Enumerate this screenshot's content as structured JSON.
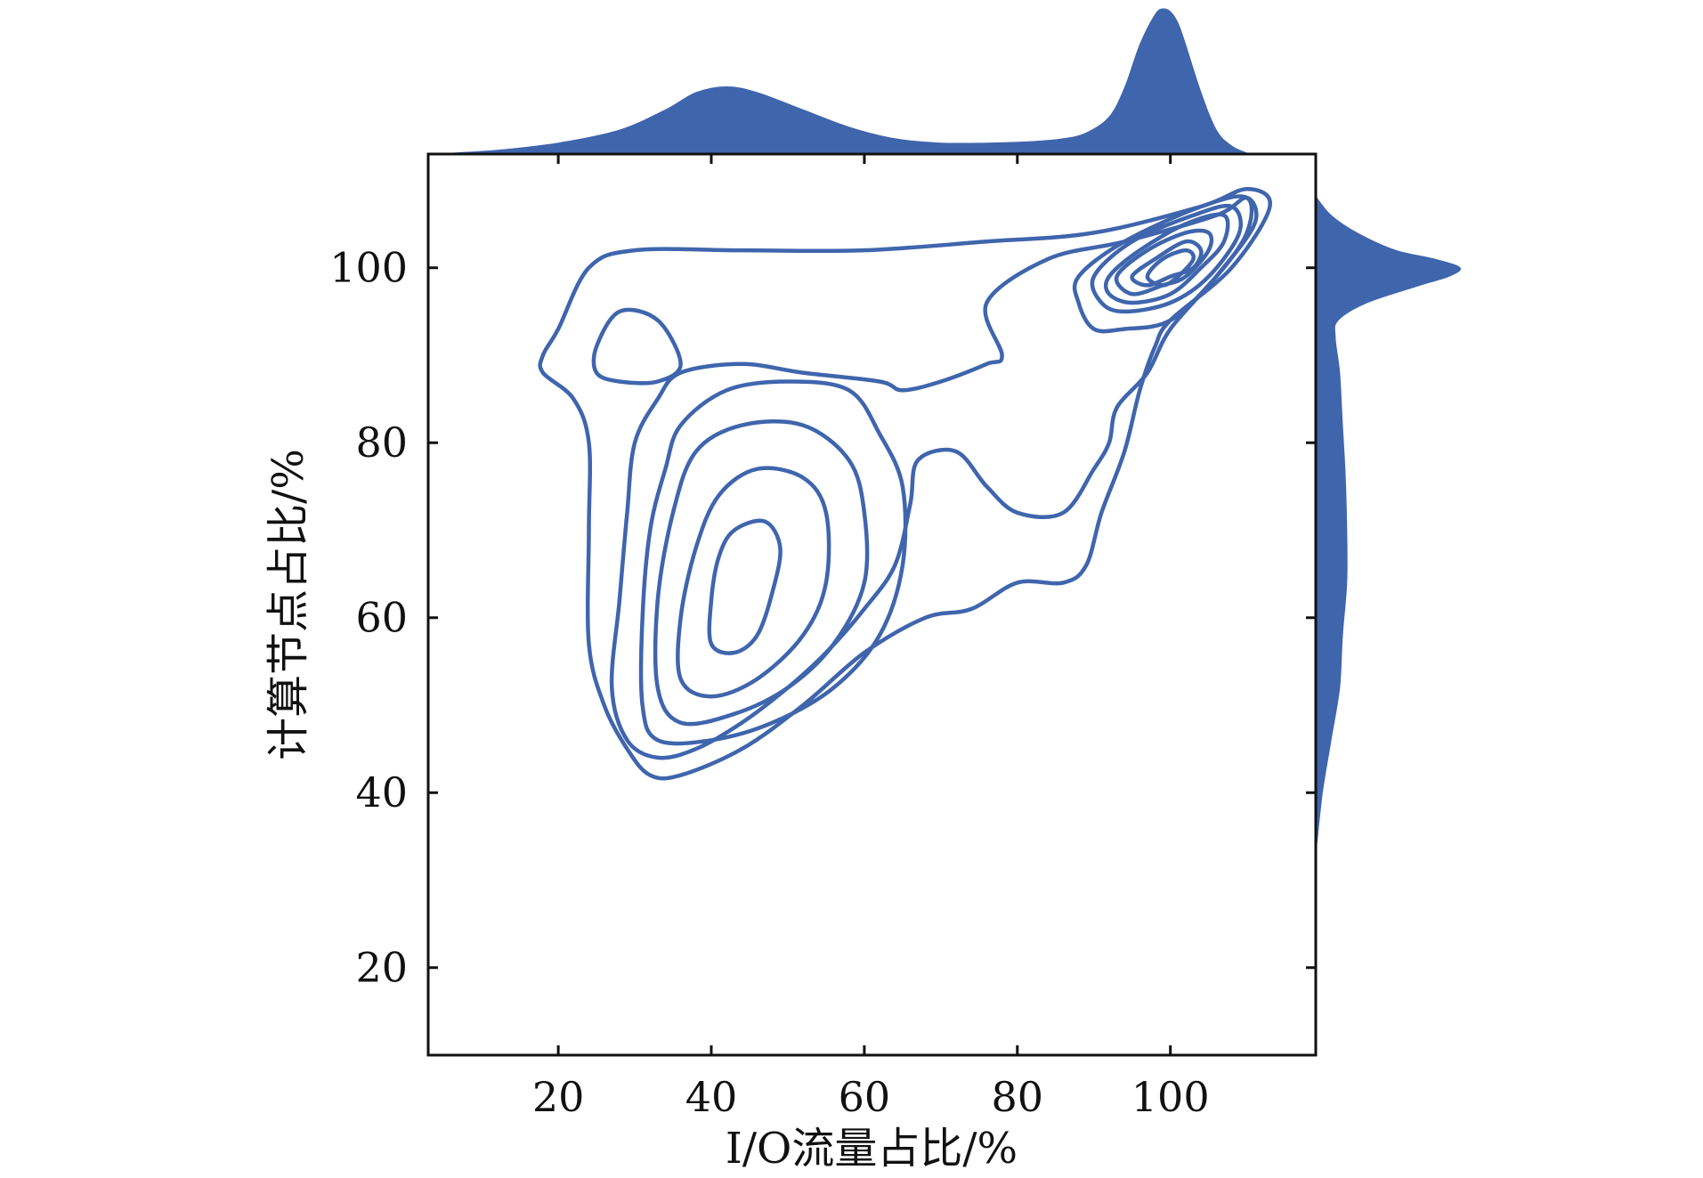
{
  "chart_data": {
    "type": "contour",
    "xlabel": "I/O流量占比/%",
    "ylabel": "计算节点占比/%",
    "xlim": [
      3,
      119
    ],
    "ylim": [
      10,
      113
    ],
    "x_ticks": [
      20,
      40,
      60,
      80,
      100
    ],
    "y_ticks": [
      20,
      40,
      60,
      80,
      100
    ],
    "grid": false,
    "color": "#3f65ad",
    "contours": [
      [
        [
          20,
          93
        ],
        [
          24,
          100
        ],
        [
          30,
          102
        ],
        [
          44,
          102
        ],
        [
          60,
          102
        ],
        [
          76,
          103
        ],
        [
          90,
          104
        ],
        [
          104,
          107
        ],
        [
          110,
          109
        ],
        [
          113,
          107
        ],
        [
          108,
          100
        ],
        [
          100,
          94
        ],
        [
          98,
          91
        ],
        [
          96,
          86
        ],
        [
          94,
          79
        ],
        [
          91,
          72
        ],
        [
          89,
          66
        ],
        [
          86,
          64
        ],
        [
          80,
          64
        ],
        [
          74,
          61
        ],
        [
          68,
          60
        ],
        [
          60,
          56
        ],
        [
          52,
          50
        ],
        [
          44,
          45
        ],
        [
          36,
          42
        ],
        [
          32,
          42
        ],
        [
          29,
          45
        ],
        [
          26,
          50
        ],
        [
          24,
          57
        ],
        [
          24,
          70
        ],
        [
          24,
          80
        ],
        [
          22,
          85
        ],
        [
          18,
          88
        ],
        [
          18,
          90
        ],
        [
          20,
          93
        ]
      ],
      [
        [
          25,
          91
        ],
        [
          28,
          95
        ],
        [
          33,
          94
        ],
        [
          36,
          89
        ],
        [
          33,
          87
        ],
        [
          28,
          87
        ],
        [
          25,
          88
        ],
        [
          25,
          91
        ]
      ],
      [
        [
          36,
          88
        ],
        [
          44,
          89
        ],
        [
          52,
          88
        ],
        [
          62,
          87
        ],
        [
          65,
          86
        ],
        [
          70,
          87
        ],
        [
          76,
          89
        ],
        [
          78,
          90
        ],
        [
          76,
          96
        ],
        [
          84,
          101
        ],
        [
          94,
          103
        ],
        [
          106,
          106
        ],
        [
          110,
          108
        ],
        [
          111,
          105
        ],
        [
          106,
          99
        ],
        [
          100,
          93
        ],
        [
          97,
          88
        ],
        [
          93,
          84
        ],
        [
          92,
          80
        ],
        [
          90,
          77
        ],
        [
          86,
          72
        ],
        [
          80,
          72
        ],
        [
          76,
          75
        ],
        [
          72,
          79
        ],
        [
          67,
          78
        ],
        [
          66,
          73
        ],
        [
          64,
          66
        ],
        [
          60,
          61
        ],
        [
          55,
          56
        ],
        [
          50,
          52
        ],
        [
          44,
          48
        ],
        [
          38,
          45
        ],
        [
          33,
          44
        ],
        [
          29,
          46
        ],
        [
          27,
          52
        ],
        [
          28,
          62
        ],
        [
          29,
          72
        ],
        [
          30,
          80
        ],
        [
          33,
          85
        ],
        [
          36,
          88
        ]
      ],
      [
        [
          36,
          82
        ],
        [
          42,
          86
        ],
        [
          50,
          87
        ],
        [
          58,
          86
        ],
        [
          62,
          81
        ],
        [
          65,
          75
        ],
        [
          65,
          66
        ],
        [
          62,
          58
        ],
        [
          56,
          52
        ],
        [
          48,
          48
        ],
        [
          40,
          46
        ],
        [
          33,
          46
        ],
        [
          31,
          50
        ],
        [
          31,
          60
        ],
        [
          32,
          70
        ],
        [
          34,
          77
        ],
        [
          36,
          82
        ]
      ],
      [
        [
          38,
          79
        ],
        [
          44,
          82
        ],
        [
          52,
          82
        ],
        [
          58,
          78
        ],
        [
          60,
          72
        ],
        [
          60,
          64
        ],
        [
          56,
          57
        ],
        [
          50,
          52
        ],
        [
          43,
          49
        ],
        [
          36,
          48
        ],
        [
          33,
          52
        ],
        [
          33,
          62
        ],
        [
          35,
          72
        ],
        [
          38,
          79
        ]
      ],
      [
        [
          41,
          74
        ],
        [
          46,
          77
        ],
        [
          52,
          76
        ],
        [
          55,
          72
        ],
        [
          55,
          64
        ],
        [
          52,
          58
        ],
        [
          46,
          53
        ],
        [
          40,
          51
        ],
        [
          36,
          53
        ],
        [
          36,
          60
        ],
        [
          38,
          68
        ],
        [
          41,
          74
        ]
      ],
      [
        [
          43,
          70
        ],
        [
          47,
          71
        ],
        [
          49,
          68
        ],
        [
          48,
          63
        ],
        [
          46,
          58
        ],
        [
          43,
          56
        ],
        [
          40,
          57
        ],
        [
          40,
          62
        ],
        [
          41,
          67
        ],
        [
          43,
          70
        ]
      ],
      [
        [
          88,
          99
        ],
        [
          94,
          103
        ],
        [
          104,
          107
        ],
        [
          110,
          108
        ],
        [
          110,
          104
        ],
        [
          106,
          99
        ],
        [
          100,
          94
        ],
        [
          94,
          93
        ],
        [
          90,
          93
        ],
        [
          88,
          96
        ],
        [
          88,
          99
        ]
      ],
      [
        [
          90,
          99
        ],
        [
          95,
          103
        ],
        [
          103,
          106
        ],
        [
          108,
          107
        ],
        [
          109,
          104
        ],
        [
          105,
          99
        ],
        [
          100,
          96
        ],
        [
          94,
          95
        ],
        [
          91,
          96
        ],
        [
          90,
          99
        ]
      ],
      [
        [
          92,
          99
        ],
        [
          96,
          102
        ],
        [
          102,
          105
        ],
        [
          107,
          106
        ],
        [
          107,
          103
        ],
        [
          104,
          100
        ],
        [
          100,
          97
        ],
        [
          95,
          96
        ],
        [
          92,
          97
        ],
        [
          92,
          99
        ]
      ],
      [
        [
          93,
          99
        ],
        [
          97,
          102
        ],
        [
          102,
          104
        ],
        [
          105,
          104
        ],
        [
          105,
          102
        ],
        [
          102,
          99
        ],
        [
          99,
          98
        ],
        [
          95,
          97
        ],
        [
          93,
          99
        ]
      ],
      [
        [
          95,
          99
        ],
        [
          98,
          101
        ],
        [
          102,
          103
        ],
        [
          104,
          102
        ],
        [
          103,
          100
        ],
        [
          100,
          99
        ],
        [
          97,
          98
        ],
        [
          95,
          99
        ]
      ],
      [
        [
          97,
          99
        ],
        [
          99,
          101
        ],
        [
          102,
          102
        ],
        [
          103,
          101
        ],
        [
          101,
          99
        ],
        [
          99,
          98
        ],
        [
          97,
          99
        ]
      ]
    ],
    "marginal_x": {
      "x": [
        6,
        12,
        20,
        28,
        34,
        38,
        42,
        46,
        52,
        58,
        64,
        70,
        76,
        82,
        86,
        89,
        92,
        94,
        96,
        98,
        99,
        100,
        101,
        102,
        104,
        106,
        108,
        110
      ],
      "density": [
        0.0,
        0.02,
        0.07,
        0.16,
        0.3,
        0.42,
        0.46,
        0.42,
        0.3,
        0.18,
        0.1,
        0.07,
        0.07,
        0.08,
        0.1,
        0.14,
        0.25,
        0.45,
        0.75,
        0.96,
        1.0,
        0.98,
        0.9,
        0.75,
        0.42,
        0.16,
        0.05,
        0.0
      ]
    },
    "marginal_y": {
      "y": [
        34,
        40,
        46,
        52,
        58,
        64,
        70,
        76,
        82,
        88,
        92,
        94,
        96,
        98,
        99,
        100,
        101,
        102,
        104,
        106,
        108
      ],
      "density": [
        0.0,
        0.04,
        0.1,
        0.16,
        0.18,
        0.21,
        0.21,
        0.2,
        0.18,
        0.16,
        0.13,
        0.15,
        0.35,
        0.72,
        0.92,
        1.0,
        0.82,
        0.55,
        0.28,
        0.1,
        0.0
      ]
    }
  }
}
